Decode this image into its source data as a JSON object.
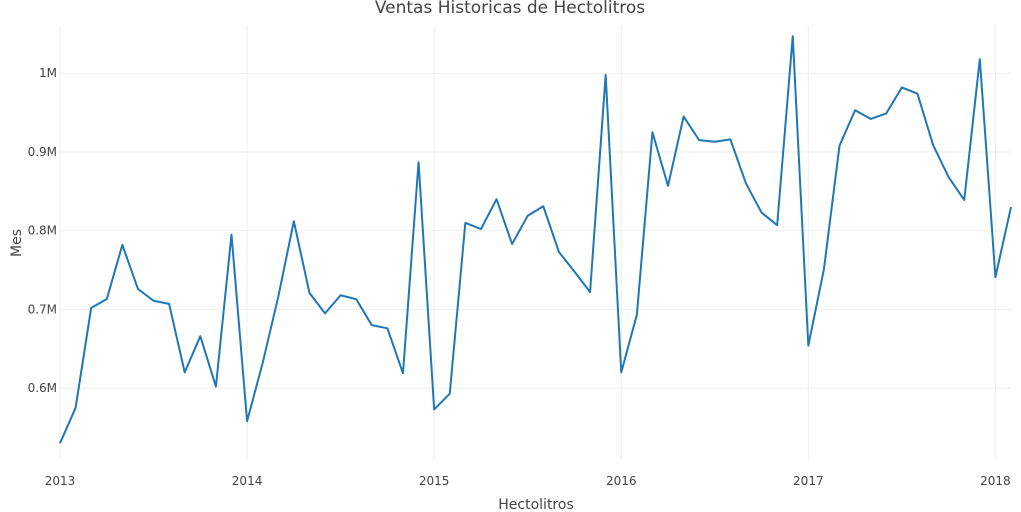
{
  "chart_data": {
    "type": "line",
    "title": "Ventas Historicas de Hectolitros",
    "xlabel": "Hectolitros",
    "ylabel": "Mes",
    "xlim": [
      "2013-01",
      "2018-02"
    ],
    "ylim": [
      510000,
      1060000
    ],
    "x_ticks": [
      "2013",
      "2014",
      "2015",
      "2016",
      "2017",
      "2018"
    ],
    "y_ticks": [
      {
        "value": 600000,
        "label": "0.6M"
      },
      {
        "value": 700000,
        "label": "0.7M"
      },
      {
        "value": 800000,
        "label": "0.8M"
      },
      {
        "value": 900000,
        "label": "0.9M"
      },
      {
        "value": 1000000,
        "label": "1M"
      }
    ],
    "grid": true,
    "color": "#1f77b4",
    "series": [
      {
        "x": [
          "2013-01",
          "2013-02",
          "2013-03",
          "2013-04",
          "2013-05",
          "2013-06",
          "2013-07",
          "2013-08",
          "2013-09",
          "2013-10",
          "2013-11",
          "2013-12",
          "2014-01",
          "2014-02",
          "2014-03",
          "2014-04",
          "2014-05",
          "2014-06",
          "2014-07",
          "2014-08",
          "2014-09",
          "2014-10",
          "2014-11",
          "2014-12",
          "2015-01",
          "2015-02",
          "2015-03",
          "2015-04",
          "2015-05",
          "2015-06",
          "2015-07",
          "2015-08",
          "2015-09",
          "2015-10",
          "2015-11",
          "2015-12",
          "2016-01",
          "2016-02",
          "2016-03",
          "2016-04",
          "2016-05",
          "2016-06",
          "2016-07",
          "2016-08",
          "2016-09",
          "2016-10",
          "2016-11",
          "2016-12",
          "2017-01",
          "2017-02",
          "2017-03",
          "2017-04",
          "2017-05",
          "2017-06",
          "2017-07",
          "2017-08",
          "2017-09",
          "2017-10",
          "2017-11",
          "2017-12",
          "2018-01",
          "2018-02"
        ],
        "values": [
          530000,
          575000,
          702000,
          713000,
          782000,
          726000,
          711000,
          707000,
          620000,
          666000,
          602000,
          795000,
          558000,
          632000,
          716000,
          812000,
          721000,
          695000,
          718000,
          713000,
          680000,
          676000,
          619000,
          887000,
          573000,
          593000,
          810000,
          802000,
          840000,
          783000,
          819000,
          831000,
          773000,
          748000,
          722000,
          998000,
          620000,
          693000,
          925000,
          857000,
          945000,
          915000,
          913000,
          916000,
          860000,
          823000,
          807000,
          1047000,
          654000,
          751000,
          908000,
          953000,
          942000,
          949000,
          982000,
          974000,
          909000,
          868000,
          839000,
          1018000,
          741000,
          830000
        ]
      }
    ]
  }
}
